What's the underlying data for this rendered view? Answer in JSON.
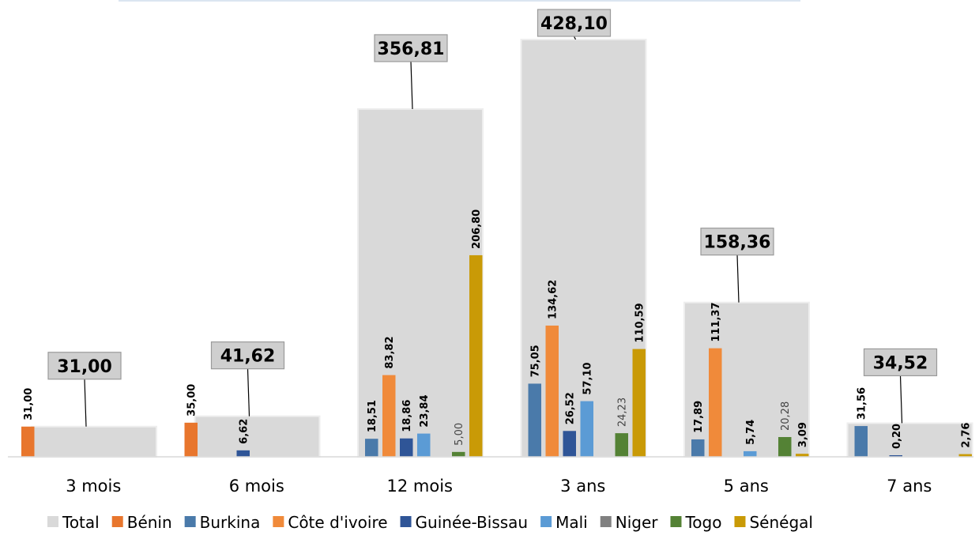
{
  "chart_data": {
    "type": "bar",
    "categories": [
      "3 mois",
      "6 mois",
      "12 mois",
      "3 ans",
      "5 ans",
      "7 ans"
    ],
    "ylim": [
      0,
      450
    ],
    "grid": false,
    "legend_position": "bottom",
    "total": {
      "name": "Total",
      "color": "#d9d9d9",
      "values": [
        31.0,
        41.62,
        356.81,
        428.1,
        158.36,
        34.52
      ],
      "labels": [
        "31,00",
        "41,62",
        "356,81",
        "428,10",
        "158,36",
        "34,52"
      ]
    },
    "series": [
      {
        "name": "Bénin",
        "color": "#e8762d",
        "values": [
          31.0,
          35.0,
          null,
          null,
          null,
          null
        ],
        "labels": [
          "31,00",
          "35,00",
          null,
          null,
          null,
          null
        ]
      },
      {
        "name": "Burkina",
        "color": "#4a7aaa",
        "values": [
          null,
          null,
          18.51,
          75.05,
          17.89,
          31.56
        ],
        "labels": [
          null,
          null,
          "18,51",
          "75,05",
          "17,89",
          "31,56"
        ]
      },
      {
        "name": "Côte d'ivoire",
        "color": "#f08a3a",
        "values": [
          null,
          null,
          83.82,
          134.62,
          111.37,
          null
        ],
        "labels": [
          null,
          null,
          "83,82",
          "134,62",
          "111,37",
          null
        ]
      },
      {
        "name": "Guinée-Bissau",
        "color": "#2f5597",
        "values": [
          null,
          6.62,
          18.86,
          26.52,
          null,
          0.2
        ],
        "labels": [
          null,
          "6,62",
          "18,86",
          "26,52",
          null,
          "0,20"
        ]
      },
      {
        "name": "Mali",
        "color": "#5b9bd5",
        "values": [
          null,
          null,
          23.84,
          57.1,
          5.74,
          null
        ],
        "labels": [
          null,
          null,
          "23,84",
          "57,10",
          "5,74",
          null
        ]
      },
      {
        "name": "Niger",
        "color": "#808080",
        "values": [
          null,
          null,
          null,
          null,
          null,
          null
        ],
        "labels": [
          null,
          null,
          null,
          null,
          null,
          null
        ]
      },
      {
        "name": "Togo",
        "color": "#548235",
        "values": [
          null,
          null,
          5.0,
          24.23,
          20.28,
          null
        ],
        "labels": [
          null,
          null,
          "5,00",
          "24,23",
          "20,28",
          null
        ]
      },
      {
        "name": "Sénégal",
        "color": "#c99a06",
        "values": [
          null,
          null,
          206.8,
          110.59,
          3.09,
          2.76
        ],
        "labels": [
          null,
          null,
          "206,80",
          "110,59",
          "3,09",
          "2,76"
        ]
      }
    ],
    "thin_labels": [
      "5,00",
      "24,23",
      "20,28"
    ]
  }
}
